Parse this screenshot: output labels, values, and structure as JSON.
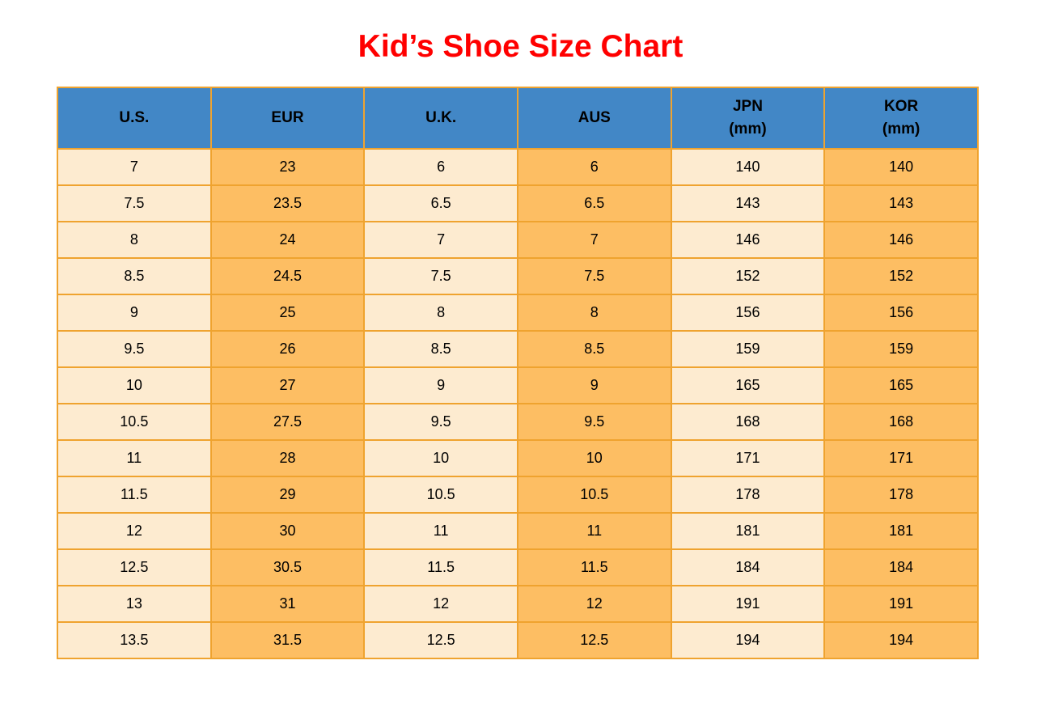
{
  "title": "Kid’s Shoe Size Chart",
  "colors": {
    "title": "#FF0000",
    "header_bg": "#4287C6",
    "cell_light": "#FDEBD0",
    "cell_dark": "#FDBE63",
    "border": "#EFA32F",
    "text": "#000000"
  },
  "table": {
    "headers": [
      {
        "key": "us",
        "lines": [
          "U.S."
        ]
      },
      {
        "key": "eur",
        "lines": [
          "EUR"
        ]
      },
      {
        "key": "uk",
        "lines": [
          "U.K."
        ]
      },
      {
        "key": "aus",
        "lines": [
          "AUS"
        ]
      },
      {
        "key": "jpn",
        "lines": [
          "JPN",
          "(mm)"
        ]
      },
      {
        "key": "kor",
        "lines": [
          "KOR",
          "(mm)"
        ]
      }
    ],
    "rows": [
      [
        "7",
        "23",
        "6",
        "6",
        "140",
        "140"
      ],
      [
        "7.5",
        "23.5",
        "6.5",
        "6.5",
        "143",
        "143"
      ],
      [
        "8",
        "24",
        "7",
        "7",
        "146",
        "146"
      ],
      [
        "8.5",
        "24.5",
        "7.5",
        "7.5",
        "152",
        "152"
      ],
      [
        "9",
        "25",
        "8",
        "8",
        "156",
        "156"
      ],
      [
        "9.5",
        "26",
        "8.5",
        "8.5",
        "159",
        "159"
      ],
      [
        "10",
        "27",
        "9",
        "9",
        "165",
        "165"
      ],
      [
        "10.5",
        "27.5",
        "9.5",
        "9.5",
        "168",
        "168"
      ],
      [
        "11",
        "28",
        "10",
        "10",
        "171",
        "171"
      ],
      [
        "11.5",
        "29",
        "10.5",
        "10.5",
        "178",
        "178"
      ],
      [
        "12",
        "30",
        "11",
        "11",
        "181",
        "181"
      ],
      [
        "12.5",
        "30.5",
        "11.5",
        "11.5",
        "184",
        "184"
      ],
      [
        "13",
        "31",
        "12",
        "12",
        "191",
        "191"
      ],
      [
        "13.5",
        "31.5",
        "12.5",
        "12.5",
        "194",
        "194"
      ]
    ]
  },
  "chart_data": {
    "type": "table",
    "title": "Kid’s Shoe Size Chart",
    "columns": [
      "U.S.",
      "EUR",
      "U.K.",
      "AUS",
      "JPN (mm)",
      "KOR (mm)"
    ],
    "rows": [
      [
        7,
        23,
        6,
        6,
        140,
        140
      ],
      [
        7.5,
        23.5,
        6.5,
        6.5,
        143,
        143
      ],
      [
        8,
        24,
        7,
        7,
        146,
        146
      ],
      [
        8.5,
        24.5,
        7.5,
        7.5,
        152,
        152
      ],
      [
        9,
        25,
        8,
        8,
        156,
        156
      ],
      [
        9.5,
        26,
        8.5,
        8.5,
        159,
        159
      ],
      [
        10,
        27,
        9,
        9,
        165,
        165
      ],
      [
        10.5,
        27.5,
        9.5,
        9.5,
        168,
        168
      ],
      [
        11,
        28,
        10,
        10,
        171,
        171
      ],
      [
        11.5,
        29,
        10.5,
        10.5,
        178,
        178
      ],
      [
        12,
        30,
        11,
        11,
        181,
        181
      ],
      [
        12.5,
        30.5,
        11.5,
        11.5,
        184,
        184
      ],
      [
        13,
        31,
        12,
        12,
        191,
        191
      ],
      [
        13.5,
        31.5,
        12.5,
        12.5,
        194,
        194
      ]
    ],
    "layout_hints": {
      "column_fill_alternation": [
        "light",
        "dark",
        "light",
        "dark",
        "light",
        "dark"
      ],
      "header_fill": "blue",
      "grid": true
    }
  }
}
